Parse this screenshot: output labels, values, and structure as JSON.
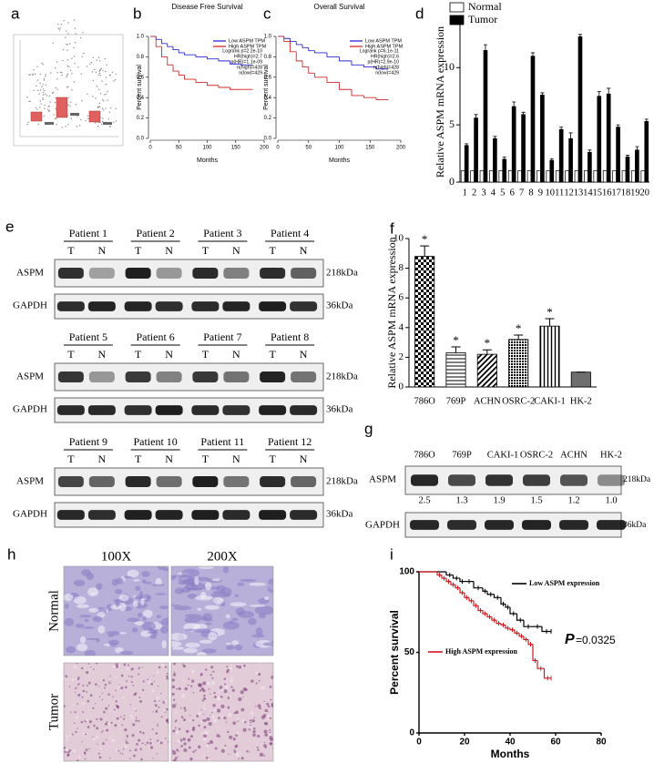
{
  "panel_letters": [
    "a",
    "b",
    "c",
    "d",
    "e",
    "f",
    "g",
    "h",
    "i"
  ],
  "chart_data": [
    {
      "type": "line",
      "step": true,
      "title": "Disease Free Survival",
      "x_label": "Months",
      "y_label": "Percent survival",
      "xlim": [
        0,
        200
      ],
      "xticks": [
        0,
        50,
        100,
        150,
        200
      ],
      "ylim": [
        0,
        1
      ],
      "yticks": [
        {
          "value": 0,
          "label": "0.0"
        },
        0.2,
        0.4,
        0.6,
        0.8,
        {
          "value": 1,
          "label": "1.0"
        }
      ],
      "legend": "upper right",
      "annotations": [
        "Logrank p=2.2e-10",
        "HR(high)=2.7",
        "p(HR)=1.1e-09",
        "n(high)=428",
        "n(low)=429"
      ],
      "series": [
        {
          "name": "Low ASPM TPM",
          "color": "#2a2ad6",
          "x": [
            0,
            10,
            20,
            30,
            40,
            50,
            60,
            80,
            100,
            120,
            140,
            160,
            180
          ],
          "values": [
            1,
            0.97,
            0.93,
            0.9,
            0.87,
            0.84,
            0.82,
            0.8,
            0.78,
            0.76,
            0.73,
            0.72,
            0.72
          ]
        },
        {
          "name": "High ASPM TPM",
          "color": "#d42a2a",
          "x": [
            0,
            10,
            20,
            30,
            40,
            50,
            60,
            80,
            100,
            120,
            140,
            160,
            180
          ],
          "values": [
            1,
            0.9,
            0.8,
            0.72,
            0.66,
            0.62,
            0.58,
            0.55,
            0.52,
            0.5,
            0.48,
            0.48,
            0.48
          ]
        }
      ]
    },
    {
      "type": "line",
      "step": true,
      "title": "Overall Survival",
      "x_label": "Months",
      "y_label": "Percent survival",
      "xlim": [
        0,
        200
      ],
      "xticks": [
        0,
        50,
        100,
        150,
        200
      ],
      "ylim": [
        0,
        1
      ],
      "yticks": [
        {
          "value": 0,
          "label": "0.0"
        },
        0.2,
        0.4,
        0.6,
        0.8,
        {
          "value": 1,
          "label": "1.0"
        }
      ],
      "legend": "upper right",
      "annotations": [
        "Logrank p=6.1e-11",
        "HR(high)=2.6",
        "p(HR)=2.9e-10",
        "n(high)=428",
        "n(low)=429"
      ],
      "series": [
        {
          "name": "Low ASPM TPM",
          "color": "#2a2ad6",
          "x": [
            0,
            10,
            20,
            30,
            40,
            50,
            60,
            80,
            100,
            120,
            140,
            160,
            180
          ],
          "values": [
            1,
            0.98,
            0.95,
            0.92,
            0.89,
            0.86,
            0.84,
            0.8,
            0.76,
            0.72,
            0.7,
            0.68,
            0.68
          ]
        },
        {
          "name": "High ASPM TPM",
          "color": "#d42a2a",
          "x": [
            0,
            10,
            20,
            30,
            40,
            50,
            60,
            80,
            100,
            120,
            140,
            160,
            180
          ],
          "values": [
            1,
            0.95,
            0.85,
            0.76,
            0.7,
            0.64,
            0.6,
            0.55,
            0.48,
            0.42,
            0.4,
            0.38,
            0.38
          ]
        }
      ]
    },
    {
      "type": "bar",
      "y_label": "Relative ASPM mRNA expression",
      "categories": [
        "1",
        "2",
        "3",
        "4",
        "5",
        "6",
        "7",
        "8",
        "9",
        "10",
        "11",
        "12",
        "13",
        "14",
        "15",
        "16",
        "17",
        "18",
        "19",
        "20"
      ],
      "ylim": [
        0,
        14
      ],
      "yticks": [
        0,
        5,
        10
      ],
      "legend": "upper left",
      "series": [
        {
          "name": "Normal",
          "color": "#ffffff",
          "values": [
            1,
            1,
            1,
            1,
            1,
            1,
            1,
            1,
            1,
            1,
            1,
            1,
            1,
            1,
            1,
            1,
            1,
            1,
            1,
            1
          ]
        },
        {
          "name": "Tumor",
          "color": "#000000",
          "values": [
            3.2,
            5.6,
            11.5,
            3.8,
            2.0,
            6.6,
            5.9,
            11.0,
            7.6,
            1.9,
            4.6,
            3.8,
            12.7,
            2.6,
            7.5,
            7.7,
            4.8,
            2.2,
            2.8,
            5.3
          ],
          "errors": [
            0.15,
            0.3,
            0.5,
            0.2,
            0.2,
            0.4,
            0.2,
            0.3,
            0.2,
            0.15,
            0.2,
            0.5,
            0.2,
            0.2,
            0.4,
            0.5,
            0.2,
            0.15,
            0.3,
            0.2
          ]
        }
      ]
    },
    {
      "type": "bar",
      "y_label": "Relative ASPM mRNA expression",
      "categories": [
        "786O",
        "769P",
        "ACHN",
        "OSRC-2",
        "CAKI-1",
        "HK-2"
      ],
      "values": [
        8.8,
        2.3,
        2.2,
        3.2,
        4.1,
        1.0
      ],
      "errors": [
        0.7,
        0.4,
        0.3,
        0.3,
        0.5,
        0
      ],
      "significance": [
        "*",
        "*",
        "*",
        "*",
        "*",
        null
      ],
      "patterns": [
        "checker",
        "hlines",
        "diagonal",
        "dots",
        "vlines",
        "solid"
      ],
      "colors": [
        "#000000",
        "#000000",
        "#000000",
        "#000000",
        "#000000",
        "#6e6e6e"
      ],
      "ylim": [
        0,
        10
      ],
      "yticks": [
        0,
        2,
        4,
        6,
        8,
        10
      ]
    },
    {
      "type": "line",
      "step": true,
      "x_label": "Months",
      "y_label": "Percent survival",
      "xlim": [
        0,
        80
      ],
      "xticks": [
        0,
        20,
        40,
        60,
        80
      ],
      "ylim": [
        0,
        100
      ],
      "yticks": [
        0,
        50,
        100
      ],
      "annotations": {
        "p_symbol": "P",
        "p_value": "=0.0325"
      },
      "series": [
        {
          "name": "Low ASPM expression",
          "color": "#000000",
          "x": [
            0,
            12,
            15,
            18,
            20,
            24,
            28,
            30,
            33,
            36,
            38,
            40,
            43,
            46,
            50,
            54,
            58
          ],
          "values": [
            100,
            98,
            96,
            94,
            94,
            90,
            88,
            86,
            84,
            80,
            78,
            74,
            70,
            66,
            66,
            63,
            63
          ]
        },
        {
          "name": "High ASPM expression",
          "color": "#d0181e",
          "x": [
            0,
            8,
            10,
            12,
            14,
            16,
            18,
            20,
            22,
            24,
            26,
            28,
            30,
            32,
            34,
            36,
            38,
            40,
            42,
            44,
            46,
            48,
            50,
            52,
            55,
            58
          ],
          "values": [
            100,
            98,
            96,
            94,
            92,
            90,
            87,
            84,
            82,
            79,
            76,
            74,
            72,
            70,
            68,
            67,
            65,
            64,
            62,
            60,
            58,
            55,
            45,
            40,
            34,
            34
          ]
        }
      ]
    }
  ],
  "western_blot_e": {
    "groups": [
      {
        "patients": [
          {
            "name": "Patient 1",
            "lanes": [
              "T",
              "N"
            ]
          },
          {
            "name": "Patient 2",
            "lanes": [
              "T",
              "N"
            ]
          },
          {
            "name": "Patient 3",
            "lanes": [
              "T",
              "N"
            ]
          },
          {
            "name": "Patient 4",
            "lanes": [
              "T",
              "N"
            ]
          }
        ],
        "rows": [
          {
            "protein": "ASPM",
            "size": "218kDa"
          },
          {
            "protein": "GAPDH",
            "size": "36kDa"
          }
        ]
      },
      {
        "patients": [
          {
            "name": "Patient 5",
            "lanes": [
              "T",
              "N"
            ]
          },
          {
            "name": "Patient 6",
            "lanes": [
              "T",
              "N"
            ]
          },
          {
            "name": "Patient 7",
            "lanes": [
              "T",
              "N"
            ]
          },
          {
            "name": "Patient 8",
            "lanes": [
              "T",
              "N"
            ]
          }
        ],
        "rows": [
          {
            "protein": "ASPM",
            "size": "218kDa"
          },
          {
            "protein": "GAPDH",
            "size": "36kDa"
          }
        ]
      },
      {
        "patients": [
          {
            "name": "Patient 9",
            "lanes": [
              "T",
              "N"
            ]
          },
          {
            "name": "Patient 10",
            "lanes": [
              "T",
              "N"
            ]
          },
          {
            "name": "Patient 11",
            "lanes": [
              "T",
              "N"
            ]
          },
          {
            "name": "Patient 12",
            "lanes": [
              "T",
              "N"
            ]
          }
        ],
        "rows": [
          {
            "protein": "ASPM",
            "size": "218kDa"
          },
          {
            "protein": "GAPDH",
            "size": "36kDa"
          }
        ]
      }
    ]
  },
  "western_blot_g": {
    "cell_lines": [
      "786O",
      "769P",
      "CAKI-1",
      "OSRC-2",
      "ACHN",
      "HK-2"
    ],
    "rows": [
      {
        "protein": "ASPM",
        "size": "218kDa"
      },
      {
        "protein": "GAPDH",
        "size": "36kDa"
      }
    ],
    "relative_intensity": [
      "2.5",
      "1.3",
      "1.9",
      "1.5",
      "1.2",
      "1.0"
    ]
  },
  "histology_h": {
    "magnifications": [
      "100X",
      "200X"
    ],
    "tissues": [
      "Normal",
      "Tumor"
    ]
  }
}
